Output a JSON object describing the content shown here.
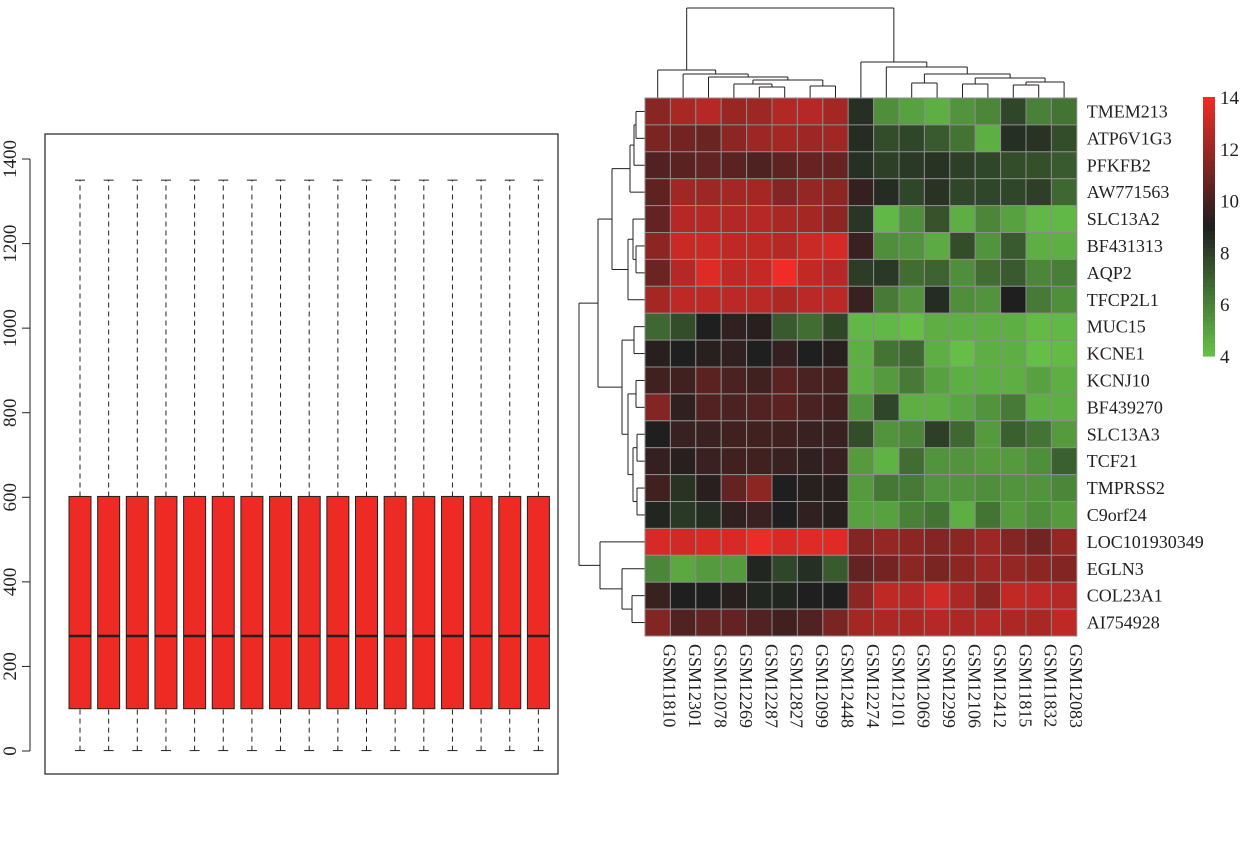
{
  "chart_data": [
    {
      "type": "boxplot",
      "n_boxes": 17,
      "ylim": [
        0,
        1400
      ],
      "yticks": [
        "0",
        "200",
        "400",
        "600",
        "800",
        "1000",
        "1200",
        "1400"
      ],
      "box_color": "#ee2a24",
      "stats": {
        "min": 1,
        "q1": 100,
        "median": 272,
        "q3": 602,
        "max": 1350
      }
    },
    {
      "type": "heatmap",
      "columns": [
        "GSM11810",
        "GSM12301",
        "GSM12078",
        "GSM12269",
        "GSM12287",
        "GSM12827",
        "GSM12099",
        "GSM12448",
        "GSM12274",
        "GSM12101",
        "GSM12069",
        "GSM12299",
        "GSM12106",
        "GSM12412",
        "GSM11815",
        "GSM11832",
        "GSM12083"
      ],
      "rows": [
        "TMEM213",
        "ATP6V1G3",
        "PFKFB2",
        "AW771563",
        "SLC13A2",
        "BF431313",
        "AQP2",
        "TFCP2L1",
        "MUC15",
        "KCNE1",
        "KCNJ10",
        "BF439270",
        "SLC13A3",
        "TCF21",
        "TMPRSS2",
        "C9orf24",
        "LOC101930349",
        "EGLN3",
        "COL23A1",
        "AI754928"
      ],
      "values": [
        [
          11.5,
          12.3,
          12.6,
          11.9,
          12.0,
          12.5,
          12.6,
          12.2,
          8.5,
          5.6,
          5.0,
          4.6,
          5.4,
          5.8,
          7.8,
          6.0,
          6.4
        ],
        [
          11.2,
          11.0,
          10.8,
          11.6,
          12.0,
          12.2,
          12.0,
          12.1,
          8.6,
          7.6,
          7.8,
          7.2,
          6.4,
          4.6,
          8.5,
          8.4,
          7.6
        ],
        [
          10.2,
          10.4,
          10.6,
          10.4,
          10.1,
          10.5,
          10.7,
          10.7,
          8.5,
          8.0,
          8.2,
          8.4,
          8.0,
          7.8,
          7.6,
          7.5,
          7.2
        ],
        [
          10.5,
          12.1,
          12.0,
          12.2,
          12.2,
          11.4,
          11.8,
          11.6,
          9.5,
          8.6,
          7.8,
          8.4,
          7.8,
          7.8,
          7.8,
          8.0,
          6.8
        ],
        [
          10.6,
          12.6,
          12.6,
          12.5,
          12.6,
          12.3,
          12.2,
          11.6,
          8.3,
          4.3,
          5.6,
          7.4,
          4.6,
          5.8,
          5.0,
          4.3,
          4.3
        ],
        [
          11.6,
          13.1,
          13.1,
          12.8,
          12.8,
          12.6,
          13.1,
          13.3,
          9.6,
          5.6,
          5.4,
          4.7,
          7.6,
          5.4,
          7.2,
          4.6,
          4.6
        ],
        [
          10.8,
          12.6,
          13.6,
          12.8,
          13.0,
          14.0,
          12.9,
          12.6,
          8.1,
          8.2,
          6.6,
          6.9,
          5.6,
          6.6,
          7.2,
          5.8,
          6.1
        ],
        [
          12.2,
          12.8,
          12.8,
          12.7,
          12.7,
          12.4,
          12.7,
          12.7,
          9.6,
          6.2,
          5.4,
          8.6,
          5.6,
          5.4,
          9.0,
          6.2,
          5.6
        ],
        [
          6.8,
          7.6,
          9.0,
          9.4,
          9.2,
          7.2,
          6.6,
          7.8,
          4.3,
          4.3,
          4.1,
          4.6,
          4.6,
          4.6,
          4.6,
          4.2,
          4.3
        ],
        [
          9.2,
          9.0,
          9.2,
          9.4,
          9.0,
          9.5,
          9.0,
          9.2,
          4.6,
          6.4,
          6.8,
          4.6,
          4.1,
          4.6,
          4.6,
          4.1,
          4.2
        ],
        [
          9.8,
          9.8,
          10.4,
          10.0,
          9.8,
          10.4,
          10.0,
          9.9,
          4.6,
          5.2,
          6.2,
          5.0,
          4.6,
          4.6,
          4.6,
          5.0,
          4.6
        ],
        [
          11.4,
          9.4,
          10.2,
          10.0,
          10.2,
          10.4,
          10.0,
          9.8,
          5.4,
          7.8,
          4.6,
          4.6,
          4.9,
          5.4,
          6.2,
          4.6,
          4.6
        ],
        [
          9.0,
          9.6,
          9.6,
          9.8,
          9.8,
          9.8,
          9.6,
          9.6,
          7.6,
          5.4,
          5.8,
          8.0,
          6.8,
          5.2,
          7.0,
          6.4,
          5.2
        ],
        [
          9.5,
          9.2,
          9.6,
          9.8,
          9.8,
          9.6,
          9.4,
          9.6,
          5.2,
          4.5,
          6.6,
          5.4,
          5.4,
          5.2,
          5.2,
          5.6,
          7.0
        ],
        [
          9.8,
          8.4,
          9.2,
          10.6,
          11.6,
          9.0,
          9.2,
          9.2,
          5.2,
          6.3,
          6.2,
          5.4,
          5.4,
          5.6,
          5.4,
          5.4,
          5.8
        ],
        [
          8.8,
          8.2,
          8.6,
          9.4,
          9.6,
          9.0,
          9.4,
          9.2,
          5.0,
          5.0,
          6.0,
          6.4,
          4.6,
          6.4,
          5.2,
          5.6,
          5.2
        ],
        [
          13.4,
          13.2,
          13.4,
          13.4,
          13.9,
          13.4,
          13.6,
          13.6,
          11.4,
          11.8,
          11.6,
          11.4,
          11.6,
          12.0,
          11.4,
          11.0,
          11.8
        ],
        [
          5.8,
          4.8,
          5.2,
          5.2,
          8.8,
          7.8,
          8.5,
          7.2,
          10.6,
          11.0,
          11.6,
          11.2,
          11.6,
          12.0,
          11.8,
          11.6,
          11.4
        ],
        [
          9.6,
          9.0,
          9.0,
          9.2,
          8.8,
          8.8,
          9.0,
          9.0,
          11.6,
          12.8,
          12.6,
          13.2,
          12.4,
          11.6,
          12.9,
          12.8,
          12.6
        ],
        [
          11.4,
          10.2,
          10.6,
          10.6,
          10.2,
          9.8,
          10.2,
          11.2,
          12.2,
          12.4,
          12.4,
          12.6,
          12.4,
          12.6,
          12.4,
          12.3,
          12.8
        ]
      ],
      "color_scale": {
        "min": 4,
        "max": 14,
        "low": "#66c248",
        "mid": "#1f1f1f",
        "high": "#f02c27"
      },
      "legend_ticks": [
        "4",
        "6",
        "8",
        "10",
        "12",
        "14"
      ],
      "cell_border": "#8c8c8c"
    }
  ]
}
